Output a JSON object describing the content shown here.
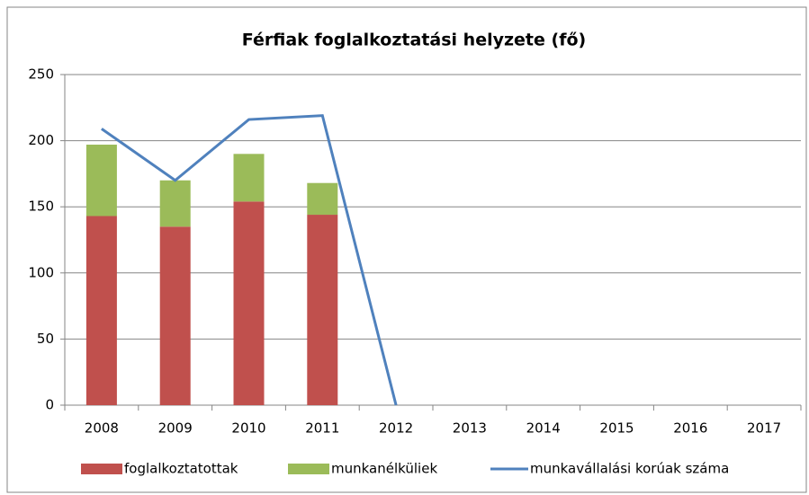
{
  "chart_data": {
    "type": "bar",
    "stacked": true,
    "title": "Férfiak foglalkoztatási helyzete (fő)",
    "categories": [
      "2008",
      "2009",
      "2010",
      "2011",
      "2012",
      "2013",
      "2014",
      "2015",
      "2016",
      "2017"
    ],
    "series": [
      {
        "name": "foglalkoztatottak",
        "type": "bar",
        "color": "#c0504d",
        "values": [
          143,
          135,
          154,
          144,
          null,
          null,
          null,
          null,
          null,
          null
        ]
      },
      {
        "name": "munkanélküliek",
        "type": "bar",
        "color": "#9bbb59",
        "values": [
          54,
          35,
          36,
          24,
          null,
          null,
          null,
          null,
          null,
          null
        ]
      },
      {
        "name": "munkavállalási korúak száma",
        "type": "line",
        "color": "#4f81bd",
        "values": [
          209,
          170,
          216,
          219,
          0,
          null,
          null,
          null,
          null,
          null
        ]
      }
    ],
    "ylim": [
      0,
      250
    ],
    "yticks": [
      0,
      50,
      100,
      150,
      200,
      250
    ],
    "grid": true,
    "legend": "bottom"
  }
}
